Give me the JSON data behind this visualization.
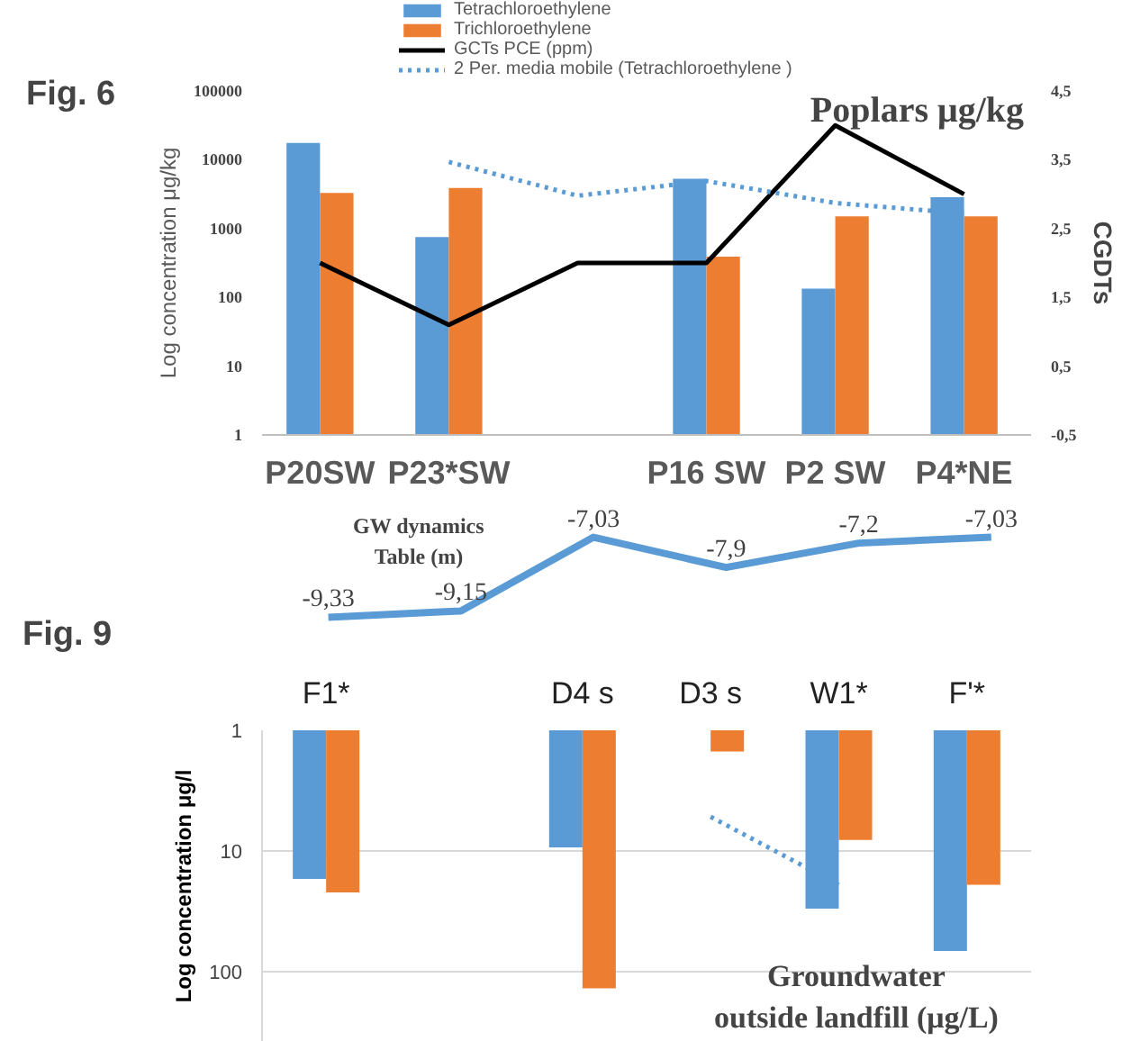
{
  "chart_data": [
    {
      "type": "bar",
      "title": "Poplars μg/kg",
      "ylabel": "Log concentration μg/kg",
      "y2label": "CGDTs",
      "annotations": [
        "Fig. 6"
      ],
      "categories": [
        "P20SW",
        "P23*SW",
        null,
        "P16 SW",
        "P2 SW",
        "P4*NE"
      ],
      "series": [
        {
          "name": "Tetrachloroethylene",
          "color": "#5b9bd5",
          "values": [
            17500,
            750,
            null,
            5300,
            134,
            2850
          ]
        },
        {
          "name": "Trichloroethylene",
          "color": "#ed7d31",
          "values": [
            3300,
            3900,
            null,
            390,
            1500,
            1500
          ]
        },
        {
          "name": "GCTs PCE (ppm)",
          "type": "line",
          "axis": "y2",
          "color": "#000000",
          "line_style": "solid",
          "values": [
            2.0,
            1.1,
            2.0,
            2.0,
            4.0,
            3.0
          ]
        },
        {
          "name": "2 Per. media mobile (Tetrachloroethylene )",
          "type": "line",
          "color": "#5b9bd5",
          "line_style": "dotted",
          "values": [
            null,
            9300,
            3000,
            4900,
            2350,
            1660
          ]
        }
      ],
      "log": "y",
      "ylim": [
        1,
        100000
      ],
      "yticks": [
        1,
        10,
        100,
        1000,
        10000,
        100000
      ],
      "y2lim": [
        -0.5,
        4.5
      ],
      "y2ticks": [
        {
          "value": -0.5,
          "label": "-0,5"
        },
        {
          "value": 0.5,
          "label": "0,5"
        },
        {
          "value": 1.5,
          "label": "1,5"
        },
        {
          "value": 2.5,
          "label": "2,5"
        },
        {
          "value": 3.5,
          "label": "3,5"
        },
        {
          "value": 4.5,
          "label": "4,5"
        }
      ],
      "grid": false,
      "legend": "top"
    },
    {
      "type": "line",
      "annotations": [
        "GW dynamics\nTable (m)",
        "Fig. 9"
      ],
      "categories": [
        null,
        null,
        null,
        null,
        null,
        null
      ],
      "series": [
        {
          "color": "#5b9bd5",
          "values": [
            -9.33,
            -9.15,
            -7.03,
            -7.9,
            -7.2,
            -7.03
          ],
          "value_labels": [
            "-9,33",
            "-9,15",
            "-7,03",
            "-7,9",
            "-7,2",
            "-7,03"
          ]
        }
      ],
      "tick_labels": false,
      "grid": false,
      "legend": false
    },
    {
      "type": "bar",
      "ylabel": "Log concentration μg/l",
      "annotations": [
        "Groundwater\noutside landfill (μg/L)"
      ],
      "categories": [
        "F1*",
        null,
        "D4 s",
        "D3 s",
        "W1*",
        "F'*"
      ],
      "series": [
        {
          "color": "#5b9bd5",
          "values": [
            17,
            null,
            9.3,
            null,
            30,
            67
          ]
        },
        {
          "color": "#ed7d31",
          "values": [
            22,
            null,
            137,
            1.5,
            8.1,
            19
          ]
        },
        {
          "type": "line",
          "color": "#5b9bd5",
          "line_style": "dotted",
          "values": [
            null,
            null,
            null,
            5.2,
            19,
            null
          ]
        }
      ],
      "log": "y",
      "ylim": [
        380,
        1
      ],
      "yticks": [
        1,
        10,
        100
      ],
      "grid": "y",
      "legend": false
    }
  ]
}
